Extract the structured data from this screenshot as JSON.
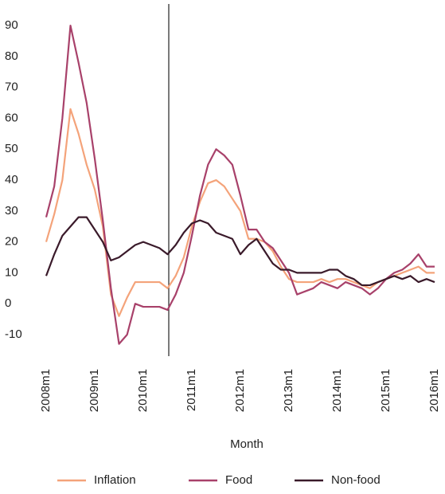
{
  "chart_data": {
    "type": "line",
    "x_label": "Month",
    "categories": [
      "2008m1",
      null,
      null,
      null,
      null,
      null,
      "2009m1",
      null,
      null,
      null,
      null,
      null,
      "2010m1",
      null,
      null,
      null,
      null,
      null,
      "2011m1",
      null,
      null,
      null,
      null,
      null,
      "2012m1",
      null,
      null,
      null,
      null,
      null,
      "2013m1",
      null,
      null,
      null,
      null,
      null,
      "2014m1",
      null,
      null,
      null,
      null,
      null,
      "2015m1",
      null,
      null,
      null,
      null,
      null,
      "2016m1"
    ],
    "series": [
      {
        "name": "Inflation",
        "color": "#f4a37a",
        "values": [
          20,
          29,
          40,
          63,
          55,
          45,
          37,
          25,
          3,
          -4,
          2,
          7,
          7,
          7,
          7,
          5,
          9,
          15,
          25,
          33,
          39,
          40,
          38,
          34,
          30,
          21,
          21,
          20,
          17,
          12,
          8,
          7,
          7,
          7,
          8,
          7,
          8,
          8,
          7,
          6,
          5,
          7,
          8,
          9,
          10,
          11,
          12,
          10,
          10
        ]
      },
      {
        "name": "Food",
        "color": "#a8416a",
        "values": [
          28,
          38,
          60,
          90,
          78,
          65,
          47,
          27,
          5,
          -13,
          -10,
          0,
          -1,
          -1,
          -1,
          -2,
          3,
          10,
          22,
          35,
          45,
          50,
          48,
          45,
          35,
          24,
          24,
          20,
          18,
          14,
          10,
          3,
          4,
          5,
          7,
          6,
          5,
          7,
          6,
          5,
          3,
          5,
          8,
          10,
          11,
          13,
          16,
          12,
          12
        ]
      },
      {
        "name": "Non-food",
        "color": "#3a1a2a",
        "values": [
          9,
          16,
          22,
          25,
          28,
          28,
          24,
          20,
          14,
          15,
          17,
          19,
          20,
          19,
          18,
          16,
          19,
          23,
          26,
          27,
          26,
          23,
          22,
          21,
          16,
          19,
          21,
          17,
          13,
          11,
          11,
          10,
          10,
          10,
          10,
          11,
          11,
          9,
          8,
          6,
          6,
          7,
          8,
          9,
          8,
          9,
          7,
          8,
          7
        ]
      }
    ],
    "ylim": [
      -18,
      97
    ],
    "yticks": [
      -10,
      0,
      10,
      20,
      30,
      40,
      50,
      60,
      70,
      80,
      90
    ],
    "grid": false
  }
}
